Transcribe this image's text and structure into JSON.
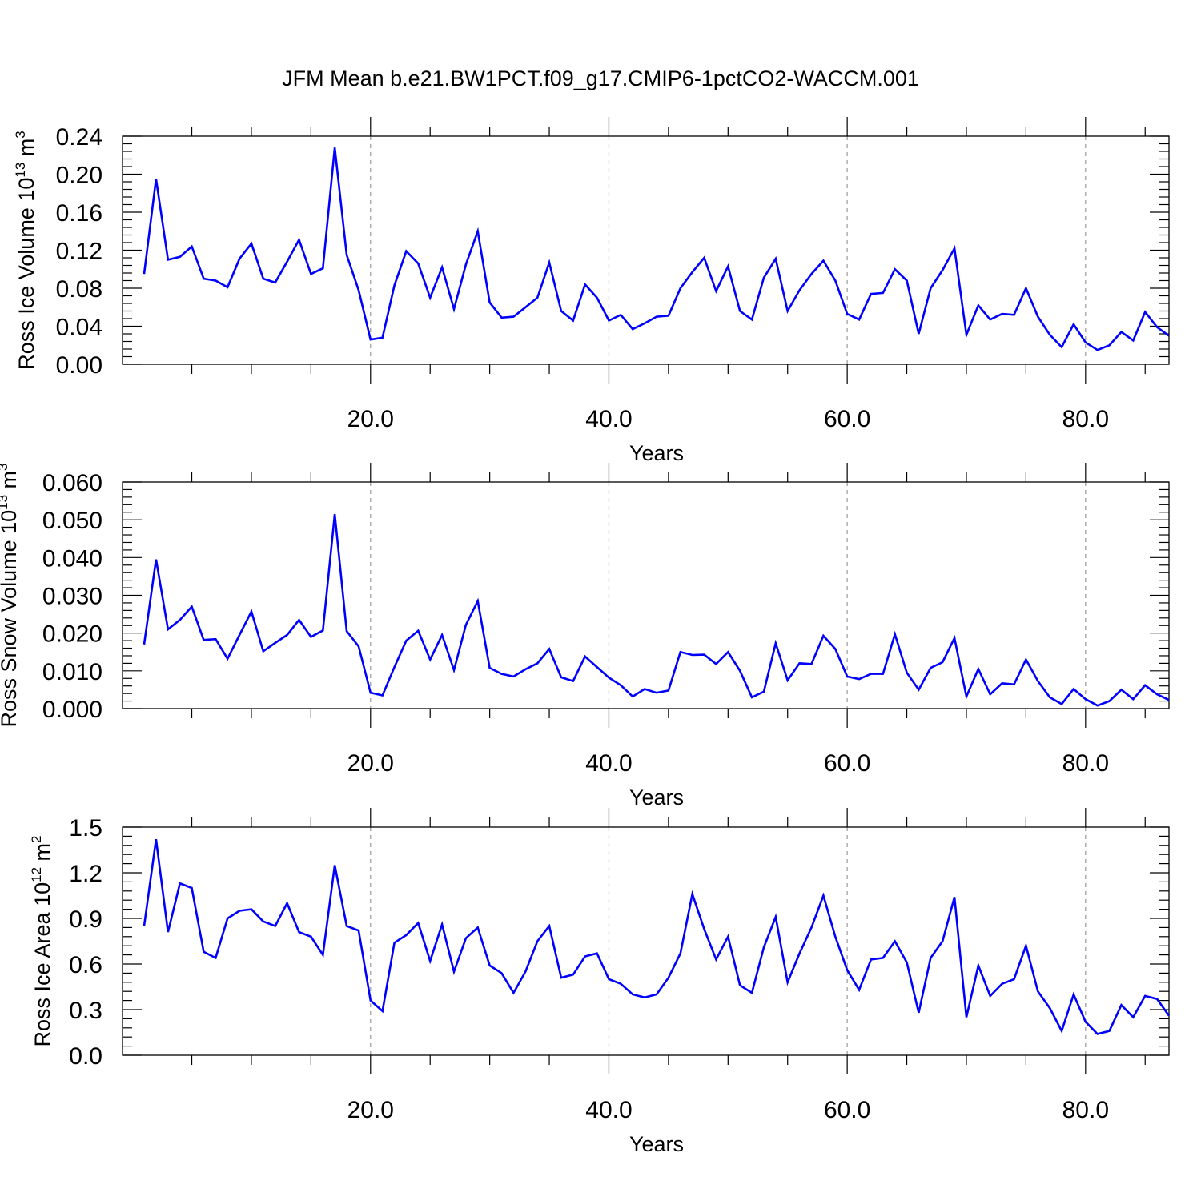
{
  "title": "JFM Mean b.e21.BW1PCT.f09_g17.CMIP6-1pctCO2-WACCM.001",
  "colors": {
    "line": "#0000ff",
    "axis": "#000000",
    "grid": "#999999"
  },
  "chart_data": [
    {
      "type": "line",
      "title": "JFM Mean b.e21.BW1PCT.f09_g17.CMIP6-1pctCO2-WACCM.001",
      "xlabel": "Years",
      "ylabel": "Ross Ice Volume 10",
      "ylabel_sup_exp": "13",
      "ylabel_unit": " m",
      "ylabel_unit_sup": "3",
      "xlim": [
        1,
        87
      ],
      "ylim": [
        0,
        0.24
      ],
      "x_ticks": [
        "20.0",
        "40.0",
        "60.0",
        "80.0"
      ],
      "y_ticks": [
        "0.00",
        "0.04",
        "0.08",
        "0.12",
        "0.16",
        "0.20",
        "0.24"
      ],
      "grid": "dashed vertical at x ticks",
      "series": [
        {
          "values": [
            0.095,
            0.195,
            0.11,
            0.113,
            0.124,
            0.09,
            0.088,
            0.081,
            0.111,
            0.127,
            0.09,
            0.086,
            0.108,
            0.131,
            0.095,
            0.101,
            0.228,
            0.115,
            0.078,
            0.026,
            0.028,
            0.083,
            0.119,
            0.106,
            0.07,
            0.102,
            0.058,
            0.105,
            0.14,
            0.065,
            0.049,
            0.05,
            0.06,
            0.07,
            0.107,
            0.056,
            0.046,
            0.084,
            0.07,
            0.046,
            0.052,
            0.037,
            0.043,
            0.05,
            0.051,
            0.08,
            0.097,
            0.112,
            0.077,
            0.103,
            0.056,
            0.047,
            0.091,
            0.111,
            0.056,
            0.078,
            0.095,
            0.109,
            0.088,
            0.053,
            0.047,
            0.074,
            0.075,
            0.1,
            0.088,
            0.032,
            0.08,
            0.099,
            0.122,
            0.031,
            0.062,
            0.047,
            0.053,
            0.052,
            0.08,
            0.05,
            0.031,
            0.018,
            0.042,
            0.023,
            0.015,
            0.02,
            0.034,
            0.025,
            0.055,
            0.039,
            0.03
          ]
        }
      ]
    },
    {
      "type": "line",
      "xlabel": "Years",
      "ylabel": "Ross Snow Volume 10",
      "ylabel_sup_exp": "13",
      "ylabel_unit": " m",
      "ylabel_unit_sup": "3",
      "xlim": [
        1,
        87
      ],
      "ylim": [
        0,
        0.06
      ],
      "x_ticks": [
        "20.0",
        "40.0",
        "60.0",
        "80.0"
      ],
      "y_ticks": [
        "0.000",
        "0.010",
        "0.020",
        "0.030",
        "0.040",
        "0.050",
        "0.060"
      ],
      "grid": "dashed vertical at x ticks",
      "series": [
        {
          "values": [
            0.017,
            0.0395,
            0.021,
            0.0235,
            0.027,
            0.0182,
            0.0184,
            0.0132,
            0.0195,
            0.0257,
            0.0152,
            0.0174,
            0.0195,
            0.0235,
            0.019,
            0.0207,
            0.0515,
            0.0205,
            0.0165,
            0.0042,
            0.0035,
            0.011,
            0.018,
            0.0206,
            0.013,
            0.0195,
            0.0102,
            0.0222,
            0.0285,
            0.0108,
            0.0092,
            0.0085,
            0.0104,
            0.012,
            0.0158,
            0.0083,
            0.0073,
            0.0138,
            0.011,
            0.0082,
            0.0062,
            0.0032,
            0.0052,
            0.0042,
            0.0048,
            0.015,
            0.0142,
            0.0143,
            0.0118,
            0.015,
            0.01,
            0.003,
            0.0045,
            0.0173,
            0.0075,
            0.012,
            0.0118,
            0.0193,
            0.0158,
            0.0085,
            0.0078,
            0.0092,
            0.0092,
            0.0197,
            0.0095,
            0.005,
            0.0108,
            0.0123,
            0.0187,
            0.0032,
            0.0105,
            0.0038,
            0.0067,
            0.0064,
            0.013,
            0.0073,
            0.003,
            0.0012,
            0.0052,
            0.0025,
            0.0008,
            0.002,
            0.005,
            0.0025,
            0.0062,
            0.0038,
            0.0023
          ]
        }
      ]
    },
    {
      "type": "line",
      "xlabel": "Years",
      "ylabel": "Ross Ice Area 10",
      "ylabel_sup_exp": "12",
      "ylabel_unit": " m",
      "ylabel_unit_sup": "2",
      "xlim": [
        1,
        87
      ],
      "ylim": [
        0,
        1.5
      ],
      "x_ticks": [
        "20.0",
        "40.0",
        "60.0",
        "80.0"
      ],
      "y_ticks": [
        "0.0",
        "0.3",
        "0.6",
        "0.9",
        "1.2",
        "1.5"
      ],
      "grid": "dashed vertical at x ticks",
      "series": [
        {
          "values": [
            0.85,
            1.42,
            0.81,
            1.13,
            1.1,
            0.68,
            0.64,
            0.9,
            0.95,
            0.96,
            0.88,
            0.85,
            1.0,
            0.81,
            0.78,
            0.66,
            1.25,
            0.85,
            0.82,
            0.36,
            0.29,
            0.74,
            0.79,
            0.87,
            0.62,
            0.86,
            0.55,
            0.77,
            0.84,
            0.59,
            0.54,
            0.41,
            0.55,
            0.75,
            0.85,
            0.51,
            0.53,
            0.65,
            0.67,
            0.5,
            0.47,
            0.4,
            0.38,
            0.4,
            0.51,
            0.67,
            1.06,
            0.83,
            0.63,
            0.78,
            0.46,
            0.41,
            0.71,
            0.91,
            0.48,
            0.67,
            0.84,
            1.05,
            0.78,
            0.56,
            0.43,
            0.63,
            0.64,
            0.75,
            0.61,
            0.28,
            0.64,
            0.75,
            1.04,
            0.25,
            0.59,
            0.39,
            0.47,
            0.5,
            0.72,
            0.42,
            0.31,
            0.16,
            0.4,
            0.22,
            0.14,
            0.16,
            0.33,
            0.25,
            0.39,
            0.37,
            0.26
          ]
        }
      ]
    }
  ]
}
